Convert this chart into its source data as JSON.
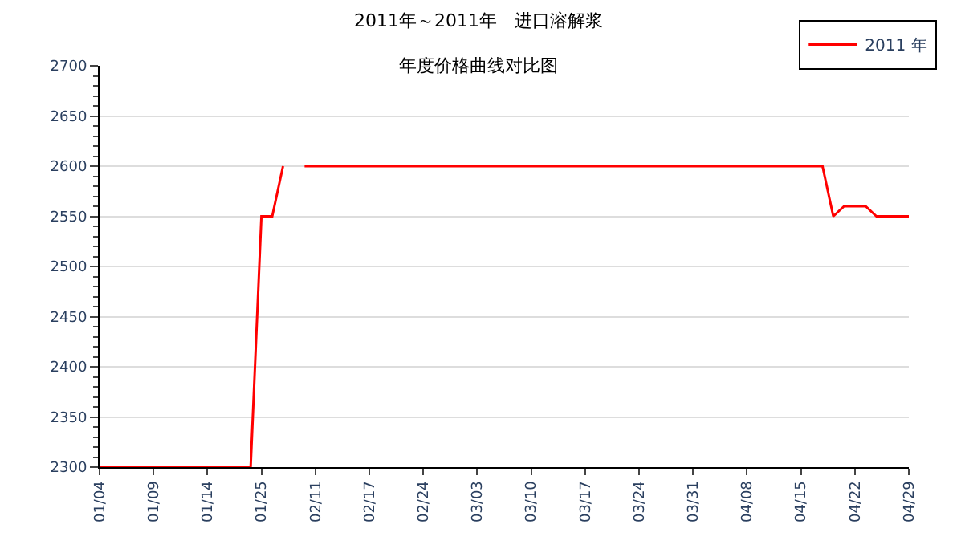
{
  "chart_data": {
    "type": "line",
    "title": "2011年～2011年　进口溶解浆",
    "subtitle": "年度价格曲线对比图",
    "categories": [
      "01/04",
      null,
      null,
      null,
      null,
      "01/09",
      null,
      null,
      null,
      null,
      "01/14",
      null,
      null,
      null,
      null,
      "01/25",
      null,
      null,
      null,
      null,
      "02/11",
      null,
      null,
      null,
      null,
      "02/17",
      null,
      null,
      null,
      null,
      "02/24",
      null,
      null,
      null,
      null,
      "03/03",
      null,
      null,
      null,
      null,
      "03/10",
      null,
      null,
      null,
      null,
      "03/17",
      null,
      null,
      null,
      null,
      "03/24",
      null,
      null,
      null,
      null,
      "03/31",
      null,
      null,
      null,
      null,
      "04/08",
      null,
      null,
      null,
      null,
      "04/15",
      null,
      null,
      null,
      null,
      "04/22",
      null,
      null,
      null,
      null,
      "04/29"
    ],
    "series": [
      {
        "name": "2011 年",
        "color": "#ff0000",
        "values": [
          2300,
          2300,
          2300,
          2300,
          2300,
          2300,
          2300,
          2300,
          2300,
          2300,
          2300,
          2300,
          2300,
          2300,
          2300,
          2550,
          2550,
          2600,
          null,
          2600,
          2600,
          2600,
          2600,
          2600,
          2600,
          2600,
          2600,
          2600,
          2600,
          2600,
          2600,
          2600,
          2600,
          2600,
          2600,
          2600,
          2600,
          2600,
          2600,
          2600,
          2600,
          2600,
          2600,
          2600,
          2600,
          2600,
          2600,
          2600,
          2600,
          2600,
          2600,
          2600,
          2600,
          2600,
          2600,
          2600,
          2600,
          2600,
          2600,
          2600,
          2600,
          2600,
          2600,
          2600,
          2600,
          2600,
          2600,
          2600,
          2550,
          2560,
          2560,
          2560,
          2550,
          2550,
          2550,
          2550
        ]
      }
    ],
    "ylim": [
      2300,
      2700
    ],
    "yticks": [
      2300,
      2350,
      2400,
      2450,
      2500,
      2550,
      2600,
      2650,
      2700
    ],
    "grid": "y",
    "legend": "top right",
    "marker": "none",
    "line_style": "solid"
  }
}
